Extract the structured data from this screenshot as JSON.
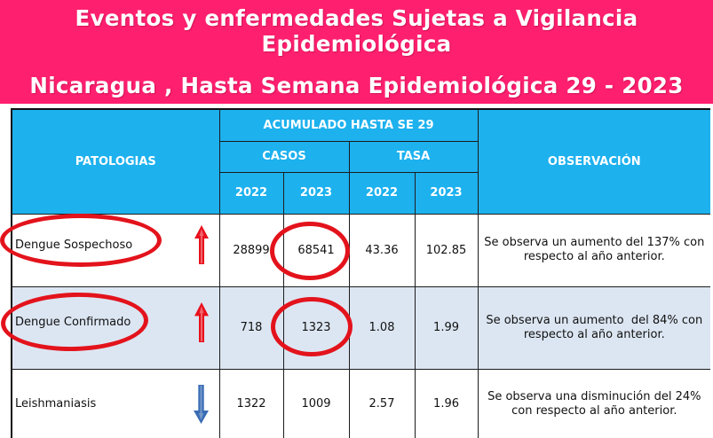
{
  "slide": {
    "title_line1": "Eventos y enfermedades Sujetas a Vigilancia",
    "title_line2": "Epidemiológica",
    "subtitle": "Nicaragua , Hasta Semana Epidemiológica 29 - 2023"
  },
  "table": {
    "headers": {
      "pathology": "PATOLOGIAS",
      "cumulative": "ACUMULADO HASTA SE 29",
      "cases": "CASOS",
      "rate": "TASA",
      "years": [
        "2022",
        "2023",
        "2022",
        "2023"
      ],
      "observation": "OBSERVACIÓN"
    },
    "rows": [
      {
        "pathology": "Dengue Sospechoso",
        "trend_icon": "up-arrow-icon",
        "trend_color": "#e8101c",
        "cases_2022": 28899,
        "cases_2023": 68541,
        "rate_2022": 43.36,
        "rate_2023": 102.85,
        "observation": "Se observa un aumento del 137% con respecto al año anterior.",
        "circled": {
          "pathology": true,
          "cases_2023": true
        }
      },
      {
        "pathology": "Dengue Confirmado",
        "trend_icon": "up-arrow-icon",
        "trend_color": "#e8101c",
        "cases_2022": 718,
        "cases_2023": 1323,
        "rate_2022": 1.08,
        "rate_2023": 1.99,
        "observation": "Se observa un aumento  del 84% con respecto al año anterior.",
        "circled": {
          "pathology": true,
          "cases_2023": true
        }
      },
      {
        "pathology": "Leishmaniasis",
        "trend_icon": "down-arrow-icon",
        "trend_color": "#3a6cb4",
        "cases_2022": 1322,
        "cases_2023": 1009,
        "rate_2022": 2.57,
        "rate_2023": 1.96,
        "observation": "Se observa una disminución del 24% con respecto al año anterior.",
        "circled": {
          "pathology": false,
          "cases_2023": false
        }
      }
    ]
  },
  "colors": {
    "banner_background": "#ff1f6f",
    "banner_text": "#ffffff",
    "header_background": "#1db1ee",
    "header_text": "#ffffff",
    "row_background": "#ffffff",
    "row_alt_background": "#dce6f2",
    "annotation_circle": "#e3131c"
  }
}
